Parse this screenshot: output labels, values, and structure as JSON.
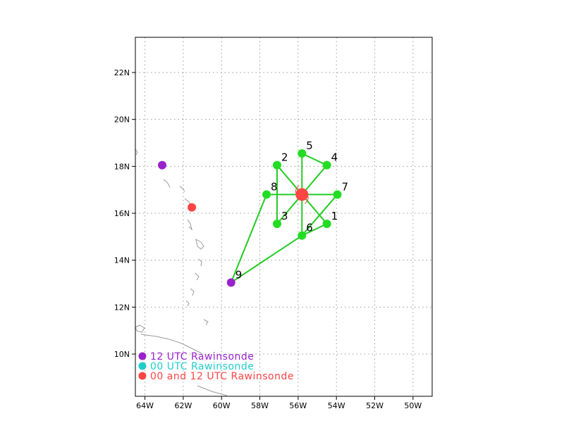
{
  "map": {
    "lon_range": [
      -64.5,
      -49
    ],
    "lat_range": [
      8.2,
      23.5
    ],
    "grid": true,
    "x_ticks": [
      {
        "value": -64,
        "label": "64W"
      },
      {
        "value": -62,
        "label": "62W"
      },
      {
        "value": -60,
        "label": "60W"
      },
      {
        "value": -58,
        "label": "58W"
      },
      {
        "value": -56,
        "label": "56W"
      },
      {
        "value": -54,
        "label": "54W"
      },
      {
        "value": -52,
        "label": "52W"
      },
      {
        "value": -50,
        "label": "50W"
      }
    ],
    "y_ticks": [
      {
        "value": 10,
        "label": "10N"
      },
      {
        "value": 12,
        "label": "12N"
      },
      {
        "value": 14,
        "label": "14N"
      },
      {
        "value": 16,
        "label": "16N"
      },
      {
        "value": 18,
        "label": "18N"
      },
      {
        "value": 20,
        "label": "20N"
      },
      {
        "value": 22,
        "label": "22N"
      }
    ],
    "center": {
      "lon": -55.8,
      "lat": 16.8,
      "color": "#ff4444"
    },
    "stations": [
      {
        "label": "1",
        "lon": -54.5,
        "lat": 15.55,
        "color": "#22dd22"
      },
      {
        "label": "2",
        "lon": -57.1,
        "lat": 18.05,
        "color": "#22dd22"
      },
      {
        "label": "3",
        "lon": -57.1,
        "lat": 15.55,
        "color": "#22dd22"
      },
      {
        "label": "4",
        "lon": -54.5,
        "lat": 18.05,
        "color": "#22dd22"
      },
      {
        "label": "5",
        "lon": -55.8,
        "lat": 18.55,
        "color": "#22dd22"
      },
      {
        "label": "6",
        "lon": -55.8,
        "lat": 15.05,
        "color": "#22dd22"
      },
      {
        "label": "7",
        "lon": -53.95,
        "lat": 16.8,
        "color": "#22dd22"
      },
      {
        "label": "8",
        "lon": -57.65,
        "lat": 16.8,
        "color": "#22dd22"
      },
      {
        "label": "9",
        "lon": -59.5,
        "lat": 13.05,
        "color": "#9922cc"
      }
    ],
    "links": [
      [
        -55.8,
        16.8,
        -54.5,
        15.55
      ],
      [
        -55.8,
        16.8,
        -57.1,
        18.05
      ],
      [
        -55.8,
        16.8,
        -57.1,
        15.55
      ],
      [
        -55.8,
        16.8,
        -54.5,
        18.05
      ],
      [
        -55.8,
        16.8,
        -55.8,
        18.55
      ],
      [
        -55.8,
        16.8,
        -55.8,
        15.05
      ],
      [
        -55.8,
        16.8,
        -53.95,
        16.8
      ],
      [
        -55.8,
        16.8,
        -57.65,
        16.8
      ],
      [
        -57.1,
        18.05,
        -57.1,
        15.55
      ],
      [
        -55.8,
        18.55,
        -54.5,
        18.05
      ],
      [
        -53.95,
        16.8,
        -55.8,
        15.05
      ],
      [
        -54.5,
        15.55,
        -55.8,
        15.05
      ],
      [
        -57.65,
        16.8,
        -59.5,
        13.05
      ],
      [
        -59.5,
        13.05,
        -55.8,
        15.05
      ]
    ],
    "extra_sites": [
      {
        "lon": -63.1,
        "lat": 18.05,
        "color": "#9922cc"
      },
      {
        "lon": -61.55,
        "lat": 16.25,
        "color": "#ff4444"
      }
    ]
  },
  "legend": [
    {
      "text": "12 UTC Rawinsonde",
      "color": "#9922cc"
    },
    {
      "text": "00 UTC Rawinsonde",
      "color": "#22cccc"
    },
    {
      "text": "00 and 12 UTC Rawinsonde",
      "color": "#ff4444"
    }
  ]
}
